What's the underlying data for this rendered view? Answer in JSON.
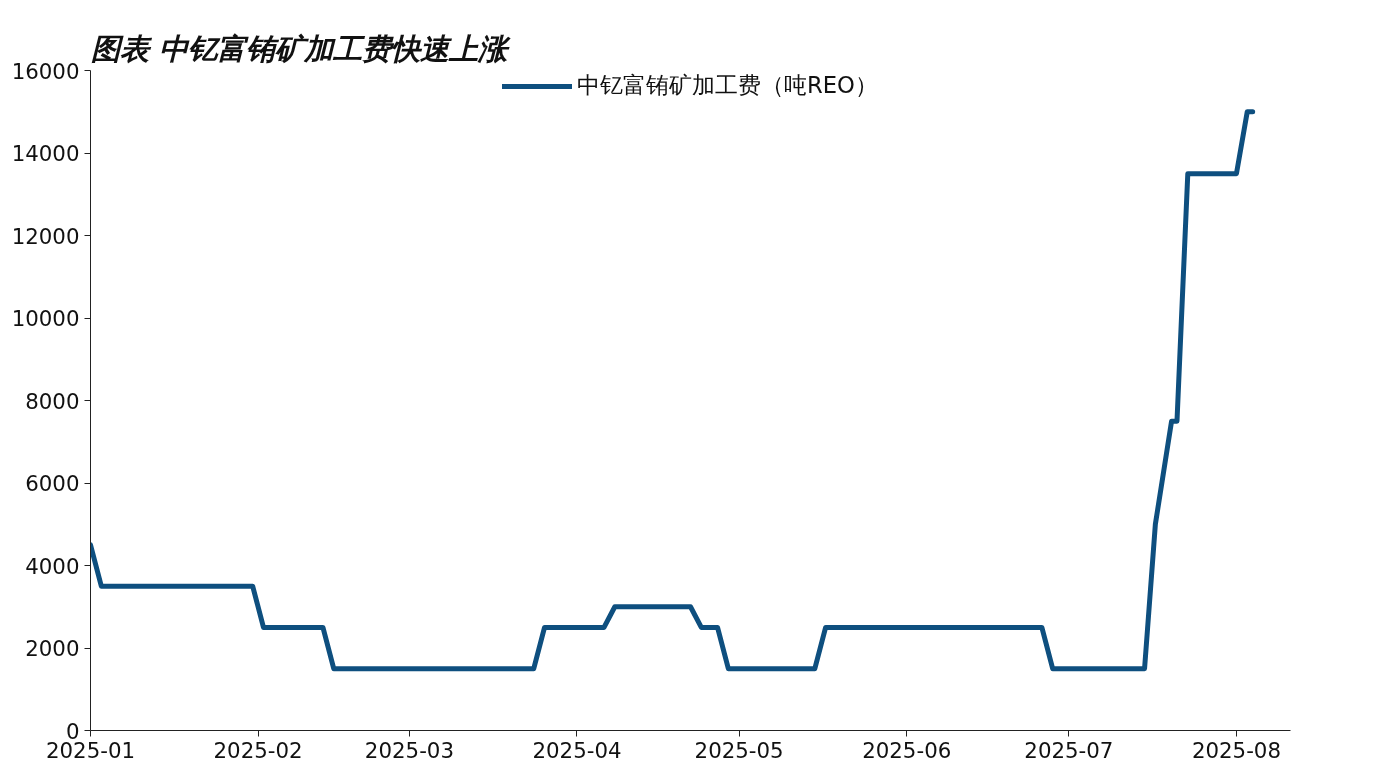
{
  "chart_data": {
    "type": "line",
    "title": "图表  中钇富铕矿加工费快速上涨",
    "x": [
      "2025-01-01",
      "2025-01-03",
      "2025-01-31",
      "2025-02-02",
      "2025-02-13",
      "2025-02-15",
      "2025-03-24",
      "2025-03-26",
      "2025-04-06",
      "2025-04-08",
      "2025-04-22",
      "2025-04-24",
      "2025-04-27",
      "2025-04-29",
      "2025-05-15",
      "2025-05-17",
      "2025-06-26",
      "2025-06-28",
      "2025-07-15",
      "2025-07-17",
      "2025-07-20",
      "2025-07-21",
      "2025-07-23",
      "2025-08-01",
      "2025-08-03",
      "2025-08-04"
    ],
    "series": [
      {
        "name": "中钇富铕矿加工费（吨REO）",
        "color": "#0e4f7f",
        "values": [
          4500,
          3500,
          3500,
          2500,
          2500,
          1500,
          1500,
          2500,
          2500,
          3000,
          3000,
          2500,
          2500,
          1500,
          1500,
          2500,
          2500,
          1500,
          1500,
          5000,
          7500,
          7500,
          13500,
          13500,
          15000,
          15000
        ]
      }
    ],
    "xlim": [
      "2025-01-01",
      "2025-08-11"
    ],
    "xticks": [
      {
        "value": "2025-01-01",
        "label": "2025-01"
      },
      {
        "value": "2025-02-01",
        "label": "2025-02"
      },
      {
        "value": "2025-03-01",
        "label": "2025-03"
      },
      {
        "value": "2025-04-01",
        "label": "2025-04"
      },
      {
        "value": "2025-05-01",
        "label": "2025-05"
      },
      {
        "value": "2025-06-01",
        "label": "2025-06"
      },
      {
        "value": "2025-07-01",
        "label": "2025-07"
      },
      {
        "value": "2025-08-01",
        "label": "2025-08"
      }
    ],
    "ylim": [
      0,
      16000
    ],
    "yticks": [
      0,
      2000,
      4000,
      6000,
      8000,
      10000,
      12000,
      14000,
      16000
    ],
    "grid": false,
    "legend": "top",
    "marker": "none",
    "line_style": "solid"
  }
}
